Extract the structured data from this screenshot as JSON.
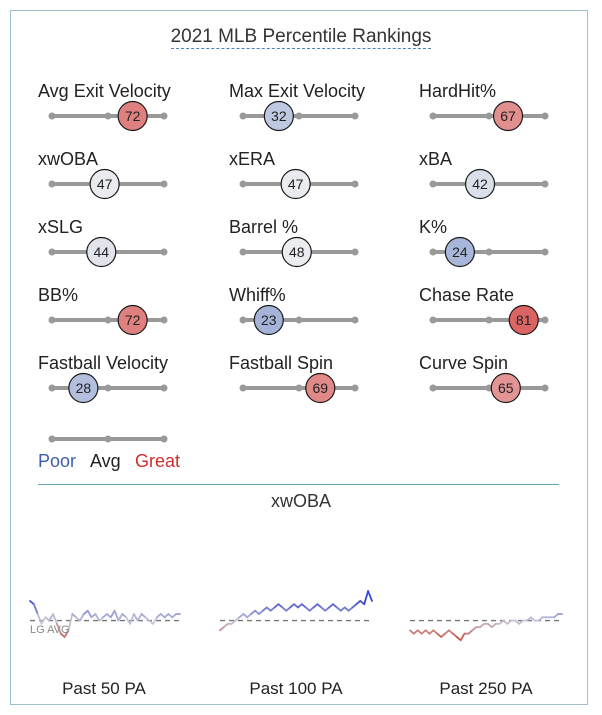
{
  "title": "2021 MLB Percentile Rankings",
  "colors": {
    "poor": "#3d5fa8",
    "avg": "#222222",
    "great": "#d22d2d",
    "track": "#999999"
  },
  "chart_data": [
    {
      "type": "percentile-sliders",
      "metrics": [
        {
          "label": "Avg Exit Velocity",
          "value": 72
        },
        {
          "label": "Max Exit Velocity",
          "value": 32
        },
        {
          "label": "HardHit%",
          "value": 67
        },
        {
          "label": "xwOBA",
          "value": 47
        },
        {
          "label": "xERA",
          "value": 47
        },
        {
          "label": "xBA",
          "value": 42
        },
        {
          "label": "xSLG",
          "value": 44
        },
        {
          "label": "Barrel %",
          "value": 48
        },
        {
          "label": "K%",
          "value": 24
        },
        {
          "label": "BB%",
          "value": 72
        },
        {
          "label": "Whiff%",
          "value": 23
        },
        {
          "label": "Chase Rate",
          "value": 81
        },
        {
          "label": "Fastball Velocity",
          "value": 28
        },
        {
          "label": "Fastball Spin",
          "value": 69
        },
        {
          "label": "Curve Spin",
          "value": 65
        }
      ]
    },
    {
      "type": "line",
      "title": "xwOBA",
      "reference_label": "LG AVG",
      "series": [
        {
          "name": "Past 50 PA",
          "values": [
            0.37,
            0.36,
            0.33,
            0.3,
            0.32,
            0.31,
            0.33,
            0.3,
            0.27,
            0.26,
            0.28,
            0.33,
            0.32,
            0.31,
            0.33,
            0.34,
            0.32,
            0.33,
            0.31,
            0.32,
            0.33,
            0.32,
            0.34,
            0.31,
            0.33,
            0.32,
            0.3,
            0.33,
            0.31,
            0.33,
            0.32,
            0.31,
            0.3,
            0.32,
            0.33,
            0.32,
            0.33,
            0.32,
            0.33,
            0.33
          ]
        },
        {
          "name": "Past 100 PA",
          "values": [
            0.28,
            0.29,
            0.3,
            0.3,
            0.31,
            0.32,
            0.33,
            0.32,
            0.33,
            0.34,
            0.33,
            0.34,
            0.35,
            0.34,
            0.35,
            0.36,
            0.35,
            0.34,
            0.35,
            0.36,
            0.35,
            0.36,
            0.35,
            0.34,
            0.35,
            0.36,
            0.35,
            0.34,
            0.35,
            0.36,
            0.35,
            0.34,
            0.35,
            0.34,
            0.35,
            0.36,
            0.37,
            0.36,
            0.4,
            0.37
          ]
        },
        {
          "name": "Past 250 PA",
          "values": [
            0.28,
            0.27,
            0.28,
            0.27,
            0.28,
            0.27,
            0.28,
            0.27,
            0.26,
            0.27,
            0.28,
            0.27,
            0.26,
            0.25,
            0.27,
            0.27,
            0.28,
            0.29,
            0.29,
            0.3,
            0.3,
            0.29,
            0.3,
            0.3,
            0.31,
            0.3,
            0.31,
            0.31,
            0.3,
            0.31,
            0.31,
            0.32,
            0.31,
            0.31,
            0.32,
            0.32,
            0.32,
            0.32,
            0.33,
            0.33
          ]
        }
      ],
      "league_average": 0.31,
      "ylim": [
        0.22,
        0.44
      ]
    }
  ],
  "legend": {
    "poor": "Poor",
    "avg": "Avg",
    "great": "Great"
  }
}
